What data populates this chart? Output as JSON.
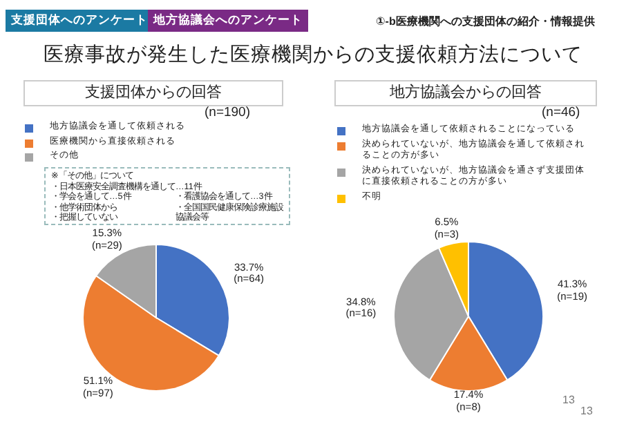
{
  "chart_data": [
    {
      "type": "pie",
      "title": "医療事故が発生した医療機関からの支援依頼方法について",
      "subtitle": "支援団体からの回答",
      "categories": [
        "地方協議会を通して依頼される",
        "医療機関から直接依頼される",
        "その他"
      ],
      "values": [
        33.7,
        51.1,
        15.3
      ],
      "value_labels": [
        "33.7%\n(n=64)",
        "51.1%\n(n=97)",
        "15.3%\n(n=29)"
      ],
      "colors": [
        "#4472c4",
        "#ed7d31",
        "#a5a5a5"
      ],
      "legend": "top",
      "annotations": [
        "支援団体へのアンケート",
        "地方協議会へのアンケート",
        "①-b医療機関への支援団体の紹介・情報提供",
        "(n=190)",
        "※「その他」について",
        "・日本医療安全調査機構を通して…11件",
        "・学会を通して…5件",
        "・看護協会を通して…3件",
        "・他学術団体から",
        "・全国国民健康保険診療施設協議会等",
        "・把握していない"
      ]
    },
    {
      "type": "pie",
      "title": "地方協議会からの回答",
      "categories": [
        "地方協議会を通して依頼されることになっている",
        "決められていないが、地方協議会を通して依頼されることの方が多い",
        "決められていないが、地方協議会を通さず支援団体に直接依頼されることの方が多い",
        "不明"
      ],
      "values": [
        41.3,
        17.4,
        34.8,
        6.5
      ],
      "value_labels": [
        "41.3%\n(n=19)",
        "17.4%\n(n=8)",
        "34.8%\n(n=16)",
        "6.5%\n(n=3)"
      ],
      "colors": [
        "#4472c4",
        "#ed7d31",
        "#a5a5a5",
        "#ffc000"
      ],
      "legend": "top",
      "annotations": [
        "(n=46)",
        "13",
        "13"
      ]
    }
  ]
}
